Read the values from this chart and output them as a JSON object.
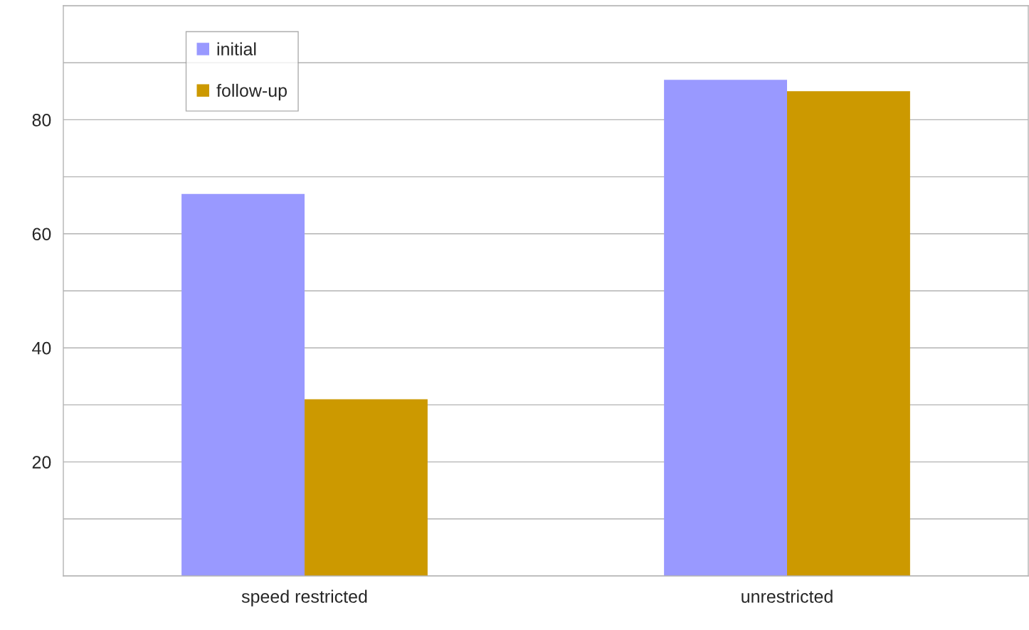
{
  "chart_data": {
    "type": "bar",
    "categories": [
      "speed restricted",
      "unrestricted"
    ],
    "series": [
      {
        "name": "initial",
        "color": "#9999ff",
        "values": [
          67,
          87
        ]
      },
      {
        "name": "follow-up",
        "color": "#cc9900",
        "values": [
          31,
          85
        ]
      }
    ],
    "ylim": [
      0,
      100
    ],
    "yticks": [
      {
        "value": 0,
        "label": null
      },
      {
        "value": 10,
        "label": null
      },
      20,
      {
        "value": 30,
        "label": null
      },
      40,
      {
        "value": 50,
        "label": null
      },
      60,
      {
        "value": 70,
        "label": null
      },
      80,
      {
        "value": 90,
        "label": null
      },
      {
        "value": 100,
        "label": null
      }
    ],
    "grid": "y",
    "legend": "top left"
  }
}
